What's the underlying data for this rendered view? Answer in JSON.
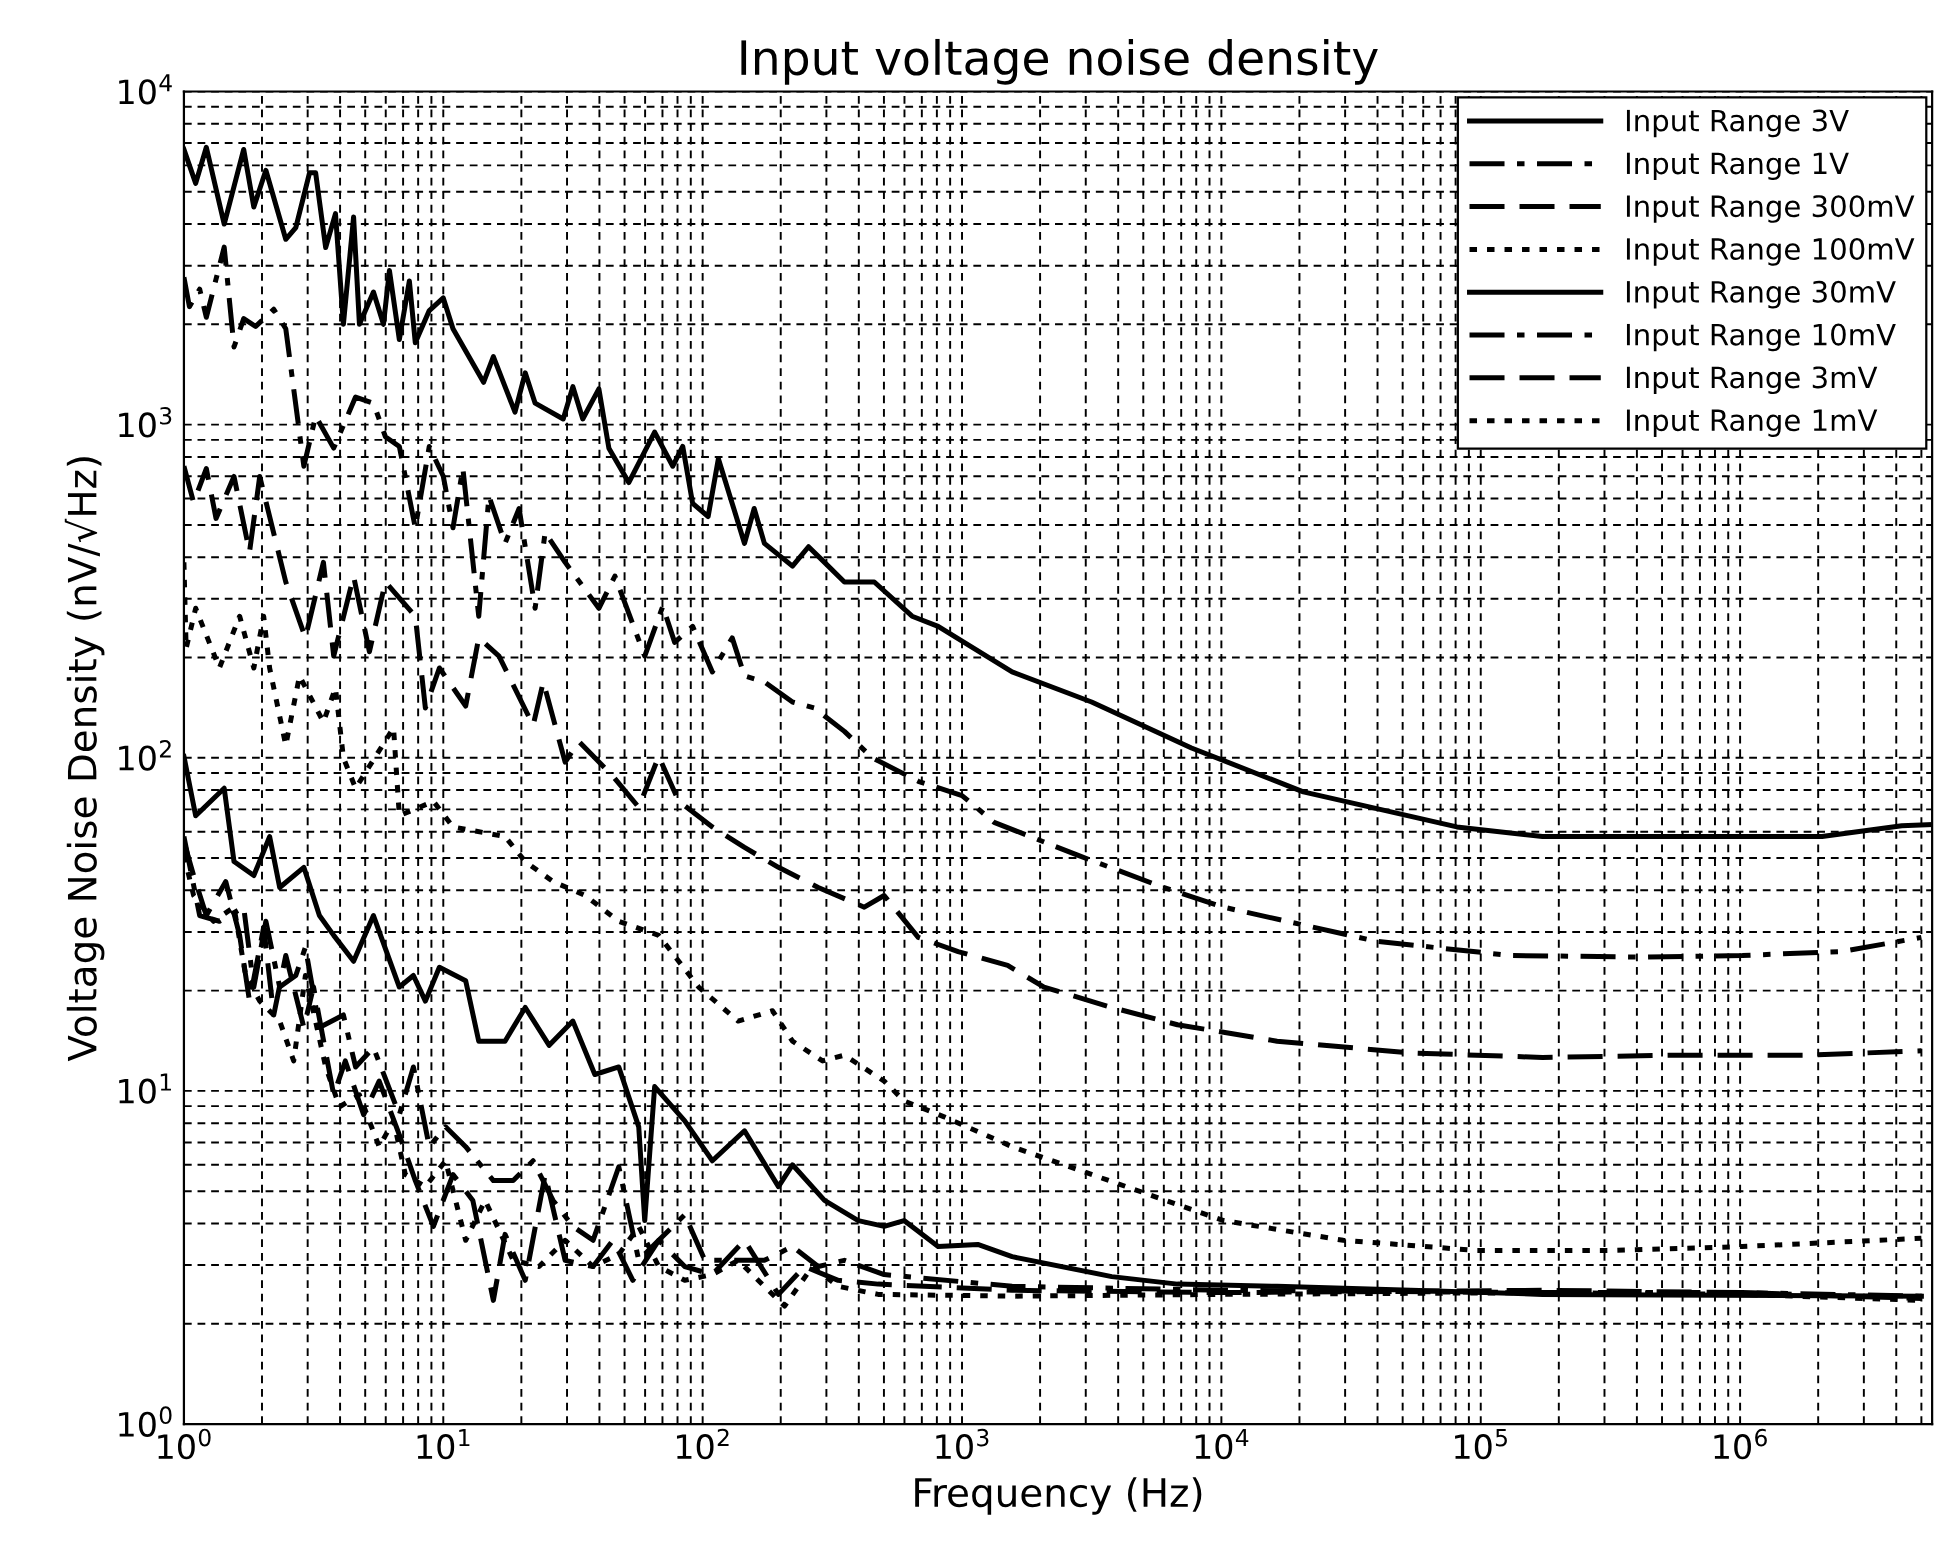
{
  "chart_data": {
    "type": "line",
    "title": "Input voltage noise density",
    "xlabel": "Frequency (Hz)",
    "ylabel": "Voltage Noise Density (nV/√Hz)",
    "log": "xy",
    "grid": true,
    "legend": "top right",
    "xlim": [
      1,
      5500000
    ],
    "ylim": [
      1,
      10000
    ],
    "xticks": [
      {
        "value": 1,
        "label": "10$^{0}$"
      },
      {
        "value": 10,
        "label": "10$^{1}$"
      },
      {
        "value": 100,
        "label": "10$^{2}$"
      },
      {
        "value": 1000,
        "label": "10$^{3}$"
      },
      {
        "value": 10000,
        "label": "10$^{4}$"
      },
      {
        "value": 100000,
        "label": "10$^{5}$"
      },
      {
        "value": 1000000,
        "label": "10$^{6}$"
      }
    ],
    "yticks": [
      {
        "value": 1,
        "label": "10$^{0}$"
      },
      {
        "value": 10,
        "label": "10$^{1}$"
      },
      {
        "value": 100,
        "label": "10$^{2}$"
      },
      {
        "value": 1000,
        "label": "10$^{3}$"
      },
      {
        "value": 10000,
        "label": "10$^{4}$"
      }
    ],
    "series": [
      {
        "name": "Input Range 3V",
        "color": "#000000",
        "line_style": "solid",
        "x": [
          1,
          1.11,
          1.22,
          1.43,
          1.7,
          1.86,
          2.07,
          2.47,
          2.7,
          3.05,
          3.22,
          3.52,
          3.84,
          4.12,
          4.51,
          4.75,
          5.38,
          5.88,
          6.2,
          6.77,
          7.4,
          7.8,
          8.83,
          10,
          10.9,
          14.3,
          15.6,
          18.9,
          20.7,
          22.6,
          29.0,
          31.6,
          34.5,
          39.8,
          43.5,
          51.9,
          65.3,
          76.7,
          83.8,
          91.5,
          105,
          115,
          130,
          145,
          158,
          173,
          222,
          256,
          295,
          352,
          459,
          642,
          809,
          1560,
          3160,
          7670,
          20700,
          80900,
          173000,
          475000,
          2070000,
          4200000,
          5500000
        ],
        "values": [
          6700,
          5300,
          6800,
          4000,
          6700,
          4500,
          5800,
          3600,
          3900,
          5700,
          5700,
          3400,
          4300,
          2000,
          4200,
          2000,
          2500,
          2000,
          2900,
          1800,
          2700,
          1760,
          2200,
          2400,
          1940,
          1340,
          1600,
          1090,
          1430,
          1160,
          1040,
          1300,
          1040,
          1280,
          850,
          670,
          950,
          750,
          860,
          580,
          530,
          790,
          580,
          440,
          560,
          440,
          376,
          430,
          386,
          337,
          337,
          266,
          248,
          181,
          147,
          107,
          79,
          62,
          58,
          58,
          58,
          62.5,
          63
        ]
      },
      {
        "name": "Input Range 1V",
        "color": "#000000",
        "line_style": "dashdot",
        "x": [
          1,
          1.05,
          1.15,
          1.22,
          1.43,
          1.56,
          1.7,
          1.89,
          2.22,
          2.47,
          2.9,
          3.22,
          3.78,
          4.59,
          5.38,
          5.98,
          6.77,
          7.8,
          8.83,
          10,
          10.9,
          11.9,
          13.7,
          15.0,
          17.3,
          19.6,
          22.6,
          24.7,
          29.5,
          39.8,
          45.9,
          59.8,
          70.2,
          78.0,
          91.5,
          109,
          130,
          145,
          173,
          222,
          270,
          352,
          451,
          678,
          1000,
          1330,
          2790,
          5980,
          10200,
          39800,
          130000,
          420000,
          1020000,
          2470000,
          5000000
        ],
        "values": [
          2770,
          2260,
          2550,
          2100,
          3410,
          1710,
          2080,
          1970,
          2220,
          1940,
          750,
          1060,
          850,
          1210,
          1160,
          920,
          860,
          490,
          860,
          700,
          490,
          740,
          266,
          610,
          440,
          560,
          281,
          475,
          386,
          281,
          351,
          202,
          285,
          222,
          248,
          181,
          229,
          176,
          169,
          147,
          141,
          120,
          100,
          85,
          77,
          64,
          51,
          40.8,
          35.6,
          28.1,
          25.5,
          25.2,
          25.5,
          26.2,
          28.9
        ]
      },
      {
        "name": "Input Range 300mV",
        "color": "#000000",
        "line_style": "dashed",
        "x": [
          1,
          1.09,
          1.22,
          1.33,
          1.56,
          1.79,
          1.96,
          2.47,
          2.94,
          3.45,
          3.78,
          4.51,
          5.19,
          5.98,
          7.8,
          8.53,
          9.66,
          12.2,
          13.7,
          16.4,
          22.2,
          24.3,
          29.5,
          33.3,
          45.1,
          56.7,
          67.7,
          80.9,
          109,
          145,
          196,
          279,
          420,
          501,
          678,
          966,
          1500,
          2070,
          3780,
          6770,
          16400,
          53800,
          173000,
          568000,
          1860000,
          5000000
        ],
        "values": [
          750,
          584,
          738,
          523,
          699,
          414,
          699,
          337,
          229,
          386,
          202,
          351,
          208,
          337,
          266,
          141,
          186,
          143,
          229,
          202,
          125,
          169,
          97,
          112,
          88,
          71,
          101,
          74,
          62,
          53.8,
          46.9,
          40.8,
          35.6,
          38.6,
          28.9,
          26.2,
          23.8,
          20.5,
          17.8,
          15.8,
          14.1,
          13.0,
          12.6,
          12.8,
          12.8,
          13.2
        ]
      },
      {
        "name": "Input Range 100mV",
        "color": "#000000",
        "line_style": "dotted",
        "x": [
          1,
          1.02,
          1.11,
          1.37,
          1.64,
          1.86,
          2.03,
          2.14,
          2.47,
          2.79,
          3.45,
          3.84,
          4.12,
          4.59,
          6.43,
          6.77,
          9.16,
          10.9,
          17.3,
          20.7,
          26.5,
          35.2,
          47.5,
          67.7,
          96.5,
          137,
          186,
          222,
          290,
          352,
          501,
          598,
          853,
          1560,
          3330,
          10200,
          29500,
          96500,
          316000,
          1020000,
          5000000
        ],
        "values": [
          386,
          213,
          281,
          186,
          266,
          186,
          266,
          186,
          109,
          176,
          128,
          162,
          100,
          81,
          123,
          67,
          74,
          62,
          58,
          48.8,
          42.5,
          38.6,
          32.3,
          29.3,
          20.5,
          16.2,
          17.4,
          14.1,
          12.3,
          12.8,
          10.7,
          9.33,
          8.36,
          6.8,
          5.53,
          4.08,
          3.56,
          3.32,
          3.32,
          3.41,
          3.61
        ]
      },
      {
        "name": "Input Range 30mV",
        "color": "#000000",
        "line_style": "solid",
        "x": [
          1,
          1.11,
          1.43,
          1.56,
          1.86,
          2.14,
          2.34,
          2.9,
          3.33,
          3.78,
          4.51,
          5.38,
          6.77,
          7.67,
          8.53,
          9.66,
          12.2,
          13.7,
          17.3,
          20.7,
          25.6,
          31.6,
          38.4,
          47.5,
          56.7,
          59.8,
          65.3,
          85.3,
          109,
          145,
          196,
          222,
          295,
          398,
          501,
          598,
          809,
          1150,
          1560,
          3780,
          6770,
          16400,
          53800,
          173000,
          5000000
        ],
        "values": [
          101,
          67,
          81,
          48.8,
          44.3,
          58,
          40.8,
          46.9,
          33.6,
          29.3,
          24.5,
          33.6,
          20.5,
          22.2,
          18.6,
          23.5,
          21.4,
          14.1,
          14.1,
          17.8,
          13.7,
          16.2,
          11.2,
          11.8,
          7.8,
          4.08,
          10.3,
          8.13,
          6.17,
          7.59,
          5.16,
          6.0,
          4.69,
          4.08,
          3.92,
          4.08,
          3.41,
          3.46,
          3.18,
          2.77,
          2.63,
          2.59,
          2.52,
          2.45,
          2.42
        ]
      },
      {
        "name": "Input Range 10mV",
        "color": "#000000",
        "line_style": "dashdot",
        "x": [
          1,
          1.15,
          1.37,
          1.7,
          1.86,
          2.07,
          2.34,
          2.7,
          2.94,
          3.33,
          4.12,
          4.59,
          5.38,
          6.77,
          7.67,
          8.83,
          10.2,
          12.2,
          15.6,
          18.6,
          22.2,
          26.5,
          31.6,
          37.8,
          47.5,
          56.7,
          67.7,
          85.3,
          102,
          130,
          173,
          222,
          279,
          352,
          501,
          1560,
          10200,
          173000,
          1020000,
          5000000
        ],
        "values": [
          58,
          33.6,
          32.3,
          35.6,
          20.5,
          32.3,
          20.5,
          22.2,
          27.0,
          15.5,
          16.9,
          11.8,
          13.5,
          8.48,
          11.8,
          6.8,
          7.8,
          6.8,
          5.38,
          5.38,
          6.17,
          4.69,
          3.92,
          3.56,
          5.92,
          3.1,
          3.56,
          4.25,
          3.1,
          3.1,
          3.1,
          3.41,
          2.97,
          3.1,
          2.81,
          2.59,
          2.52,
          2.48,
          2.48,
          2.42
        ]
      },
      {
        "name": "Input Range 3mV",
        "color": "#000000",
        "line_style": "dashed",
        "x": [
          1,
          1.09,
          1.22,
          1.45,
          1.64,
          1.79,
          2.03,
          2.22,
          2.47,
          2.9,
          3.16,
          3.78,
          4.19,
          4.93,
          5.66,
          6.77,
          7.8,
          9.16,
          10.9,
          13.0,
          15.6,
          17.3,
          20.7,
          24.7,
          29.5,
          37.8,
          45.1,
          53.8,
          67.7,
          85.3,
          109,
          145,
          196,
          247,
          333,
          475,
          1560,
          10200,
          173000,
          1020000,
          5000000
        ],
        "values": [
          56,
          44.3,
          33.6,
          42.5,
          29.3,
          18.6,
          31.0,
          16.9,
          25.5,
          15.5,
          20.5,
          9.73,
          12.3,
          8.48,
          10.7,
          7.38,
          5.38,
          3.92,
          5.61,
          4.69,
          2.35,
          3.71,
          2.7,
          5.61,
          3.1,
          2.97,
          3.56,
          2.7,
          3.56,
          2.97,
          2.81,
          3.56,
          2.45,
          2.97,
          2.7,
          2.63,
          2.52,
          2.48,
          2.52,
          2.48,
          2.38
        ]
      },
      {
        "name": "Input Range 1mV",
        "color": "#000000",
        "line_style": "dotted",
        "x": [
          1,
          1.09,
          1.3,
          1.56,
          1.73,
          1.96,
          2.34,
          2.65,
          2.94,
          3.52,
          3.98,
          4.75,
          5.66,
          6.43,
          7.14,
          8.53,
          10.2,
          12.2,
          14.5,
          18.6,
          23.4,
          29.5,
          37.8,
          47.5,
          56.7,
          67.7,
          85.3,
          109,
          137,
          173,
          207,
          265,
          333,
          475,
          1560,
          10200,
          173000,
          1020000,
          5000000
        ],
        "values": [
          51,
          38.6,
          32.3,
          35.6,
          22.2,
          18.6,
          16.2,
          12.3,
          22.2,
          11.8,
          8.96,
          9.73,
          6.8,
          8.13,
          5.61,
          5.16,
          6.17,
          3.56,
          4.69,
          3.1,
          2.97,
          3.56,
          2.97,
          3.23,
          3.92,
          2.97,
          2.7,
          2.81,
          3.1,
          2.59,
          2.26,
          2.97,
          2.59,
          2.45,
          2.42,
          2.45,
          2.48,
          2.45,
          2.35
        ]
      }
    ]
  }
}
